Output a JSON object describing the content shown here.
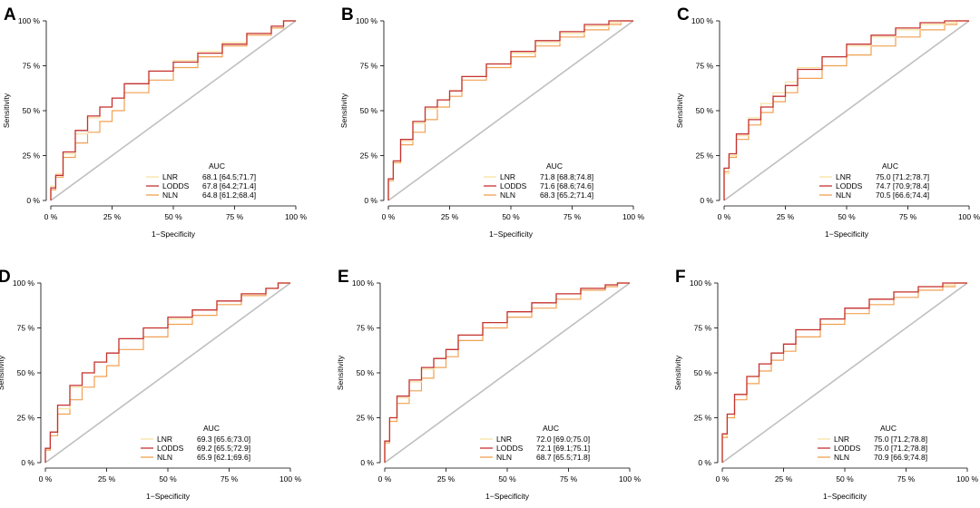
{
  "shared": {
    "xlabel": "1−Specificity",
    "ylabel": "Sensitivity",
    "xticks": [
      "0 %",
      "25 %",
      "50 %",
      "75 %",
      "100 %"
    ],
    "yticks": [
      "0 %",
      "25 %",
      "50 %",
      "75 %",
      "100 %"
    ],
    "legend_title": "AUC",
    "series_names": [
      "LNR",
      "LODDS",
      "NLN"
    ],
    "colors": {
      "LNR": "#f7e3a0",
      "LODDS": "#c53232",
      "NLN": "#f0a052",
      "diagonal": "#bfbfbf",
      "axis": "#000000"
    }
  },
  "chart_data": [
    {
      "type": "line",
      "panel_label": "A",
      "title": "",
      "xlabel": "1−Specificity",
      "ylabel": "Sensitivity",
      "xlim": [
        0,
        1
      ],
      "ylim": [
        0,
        1
      ],
      "legend_title": "AUC",
      "series": [
        {
          "name": "LNR",
          "auc_text": "68.1 [64.5;71.7]",
          "x": [
            0,
            0.02,
            0.05,
            0.1,
            0.15,
            0.2,
            0.25,
            0.3,
            0.4,
            0.5,
            0.6,
            0.7,
            0.8,
            0.9,
            0.95,
            1.0
          ],
          "y": [
            0,
            0.08,
            0.15,
            0.26,
            0.37,
            0.46,
            0.52,
            0.57,
            0.65,
            0.72,
            0.78,
            0.83,
            0.88,
            0.93,
            0.97,
            1.0
          ]
        },
        {
          "name": "LODDS",
          "auc_text": "67.8 [64.2;71.4]",
          "x": [
            0,
            0.02,
            0.05,
            0.1,
            0.15,
            0.2,
            0.25,
            0.3,
            0.4,
            0.5,
            0.6,
            0.7,
            0.8,
            0.9,
            0.95,
            1.0
          ],
          "y": [
            0,
            0.07,
            0.14,
            0.27,
            0.39,
            0.47,
            0.52,
            0.57,
            0.65,
            0.72,
            0.77,
            0.82,
            0.87,
            0.93,
            0.97,
            1.0
          ]
        },
        {
          "name": "NLN",
          "auc_text": "64.8 [61.2;68.4]",
          "x": [
            0,
            0.02,
            0.05,
            0.1,
            0.15,
            0.2,
            0.25,
            0.3,
            0.4,
            0.5,
            0.6,
            0.7,
            0.8,
            0.9,
            0.95,
            1.0
          ],
          "y": [
            0,
            0.06,
            0.13,
            0.24,
            0.32,
            0.38,
            0.44,
            0.5,
            0.6,
            0.67,
            0.74,
            0.8,
            0.86,
            0.92,
            0.96,
            1.0
          ]
        }
      ]
    },
    {
      "type": "line",
      "panel_label": "B",
      "title": "",
      "xlabel": "1−Specificity",
      "ylabel": "Sensitivity",
      "xlim": [
        0,
        1
      ],
      "ylim": [
        0,
        1
      ],
      "legend_title": "AUC",
      "series": [
        {
          "name": "LNR",
          "auc_text": "71.8 [68.8;74.8]",
          "x": [
            0,
            0.02,
            0.05,
            0.1,
            0.15,
            0.2,
            0.25,
            0.3,
            0.4,
            0.5,
            0.6,
            0.7,
            0.8,
            0.9,
            0.95,
            1.0
          ],
          "y": [
            0,
            0.12,
            0.22,
            0.33,
            0.43,
            0.51,
            0.56,
            0.61,
            0.69,
            0.76,
            0.82,
            0.88,
            0.93,
            0.97,
            0.99,
            1.0
          ]
        },
        {
          "name": "LODDS",
          "auc_text": "71.6 [68.6;74.6]",
          "x": [
            0,
            0.02,
            0.05,
            0.1,
            0.15,
            0.2,
            0.25,
            0.3,
            0.4,
            0.5,
            0.6,
            0.7,
            0.8,
            0.9,
            0.95,
            1.0
          ],
          "y": [
            0,
            0.12,
            0.22,
            0.34,
            0.44,
            0.52,
            0.56,
            0.61,
            0.69,
            0.76,
            0.83,
            0.89,
            0.94,
            0.98,
            1.0,
            1.0
          ]
        },
        {
          "name": "NLN",
          "auc_text": "68.3 [65.2;71.4]",
          "x": [
            0,
            0.02,
            0.05,
            0.1,
            0.15,
            0.2,
            0.25,
            0.3,
            0.4,
            0.5,
            0.6,
            0.7,
            0.8,
            0.9,
            0.95,
            1.0
          ],
          "y": [
            0,
            0.11,
            0.21,
            0.31,
            0.38,
            0.45,
            0.52,
            0.58,
            0.67,
            0.74,
            0.8,
            0.86,
            0.91,
            0.95,
            0.98,
            1.0
          ]
        }
      ]
    },
    {
      "type": "line",
      "panel_label": "C",
      "title": "",
      "xlabel": "1−Specificity",
      "ylabel": "Sensitivity",
      "xlim": [
        0,
        1
      ],
      "ylim": [
        0,
        1
      ],
      "legend_title": "AUC",
      "series": [
        {
          "name": "LNR",
          "auc_text": "75.0 [71.2;78.7]",
          "x": [
            0,
            0.02,
            0.05,
            0.1,
            0.15,
            0.2,
            0.25,
            0.3,
            0.4,
            0.5,
            0.6,
            0.7,
            0.8,
            0.9,
            0.95,
            1.0
          ],
          "y": [
            0,
            0.15,
            0.25,
            0.36,
            0.46,
            0.54,
            0.6,
            0.66,
            0.74,
            0.8,
            0.86,
            0.91,
            0.95,
            0.98,
            0.99,
            1.0
          ]
        },
        {
          "name": "LODDS",
          "auc_text": "74.7 [70.9;78.4]",
          "x": [
            0,
            0.02,
            0.05,
            0.1,
            0.15,
            0.2,
            0.25,
            0.3,
            0.4,
            0.5,
            0.6,
            0.7,
            0.8,
            0.9,
            0.95,
            1.0
          ],
          "y": [
            0,
            0.18,
            0.26,
            0.37,
            0.45,
            0.52,
            0.58,
            0.64,
            0.73,
            0.8,
            0.87,
            0.92,
            0.96,
            0.99,
            1.0,
            1.0
          ]
        },
        {
          "name": "NLN",
          "auc_text": "70.5 [66.6;74.4]",
          "x": [
            0,
            0.02,
            0.05,
            0.1,
            0.15,
            0.2,
            0.25,
            0.3,
            0.4,
            0.5,
            0.6,
            0.7,
            0.8,
            0.9,
            0.95,
            1.0
          ],
          "y": [
            0,
            0.16,
            0.24,
            0.34,
            0.42,
            0.49,
            0.55,
            0.6,
            0.68,
            0.75,
            0.81,
            0.86,
            0.91,
            0.95,
            0.98,
            1.0
          ]
        }
      ]
    },
    {
      "type": "line",
      "panel_label": "D",
      "title": "",
      "xlabel": "1−Specificity",
      "ylabel": "Sensitivity",
      "xlim": [
        0,
        1
      ],
      "ylim": [
        0,
        1
      ],
      "legend_title": "AUC",
      "series": [
        {
          "name": "LNR",
          "auc_text": "69.3 [65.6;73.0]",
          "x": [
            0,
            0.02,
            0.05,
            0.1,
            0.15,
            0.2,
            0.25,
            0.3,
            0.4,
            0.5,
            0.6,
            0.7,
            0.8,
            0.9,
            0.95,
            1.0
          ],
          "y": [
            0,
            0.08,
            0.17,
            0.3,
            0.42,
            0.5,
            0.56,
            0.61,
            0.69,
            0.75,
            0.8,
            0.85,
            0.9,
            0.94,
            0.97,
            1.0
          ]
        },
        {
          "name": "LODDS",
          "auc_text": "69.2 [65.5;72.9]",
          "x": [
            0,
            0.02,
            0.05,
            0.1,
            0.15,
            0.2,
            0.25,
            0.3,
            0.4,
            0.5,
            0.6,
            0.7,
            0.8,
            0.9,
            0.95,
            1.0
          ],
          "y": [
            0,
            0.08,
            0.17,
            0.32,
            0.43,
            0.5,
            0.56,
            0.61,
            0.69,
            0.75,
            0.81,
            0.85,
            0.9,
            0.94,
            0.97,
            1.0
          ]
        },
        {
          "name": "NLN",
          "auc_text": "65.9 [62.1;69.6]",
          "x": [
            0,
            0.02,
            0.05,
            0.1,
            0.15,
            0.2,
            0.25,
            0.3,
            0.4,
            0.5,
            0.6,
            0.7,
            0.8,
            0.9,
            0.95,
            1.0
          ],
          "y": [
            0,
            0.07,
            0.15,
            0.27,
            0.35,
            0.42,
            0.48,
            0.54,
            0.63,
            0.7,
            0.77,
            0.82,
            0.88,
            0.93,
            0.97,
            1.0
          ]
        }
      ]
    },
    {
      "type": "line",
      "panel_label": "E",
      "title": "",
      "xlabel": "1−Specificity",
      "ylabel": "Sensitivity",
      "xlim": [
        0,
        1
      ],
      "ylim": [
        0,
        1
      ],
      "legend_title": "AUC",
      "series": [
        {
          "name": "LNR",
          "auc_text": "72.0 [69.0;75.0]",
          "x": [
            0,
            0.02,
            0.05,
            0.1,
            0.15,
            0.2,
            0.25,
            0.3,
            0.4,
            0.5,
            0.6,
            0.7,
            0.8,
            0.9,
            0.95,
            1.0
          ],
          "y": [
            0,
            0.12,
            0.25,
            0.36,
            0.45,
            0.52,
            0.58,
            0.63,
            0.71,
            0.78,
            0.84,
            0.89,
            0.94,
            0.97,
            0.99,
            1.0
          ]
        },
        {
          "name": "LODDS",
          "auc_text": "72.1 [69.1;75.1]",
          "x": [
            0,
            0.02,
            0.05,
            0.1,
            0.15,
            0.2,
            0.25,
            0.3,
            0.4,
            0.5,
            0.6,
            0.7,
            0.8,
            0.9,
            0.95,
            1.0
          ],
          "y": [
            0,
            0.12,
            0.25,
            0.37,
            0.46,
            0.53,
            0.58,
            0.63,
            0.71,
            0.78,
            0.84,
            0.89,
            0.94,
            0.97,
            0.99,
            1.0
          ]
        },
        {
          "name": "NLN",
          "auc_text": "68.7 [65.5;71.8]",
          "x": [
            0,
            0.02,
            0.05,
            0.1,
            0.15,
            0.2,
            0.25,
            0.3,
            0.4,
            0.5,
            0.6,
            0.7,
            0.8,
            0.9,
            0.95,
            1.0
          ],
          "y": [
            0,
            0.11,
            0.23,
            0.33,
            0.4,
            0.47,
            0.53,
            0.59,
            0.68,
            0.75,
            0.81,
            0.86,
            0.91,
            0.96,
            0.98,
            1.0
          ]
        }
      ]
    },
    {
      "type": "line",
      "panel_label": "F",
      "title": "",
      "xlabel": "1−Specificity",
      "ylabel": "Sensitivity",
      "xlim": [
        0,
        1
      ],
      "ylim": [
        0,
        1
      ],
      "legend_title": "AUC",
      "series": [
        {
          "name": "LNR",
          "auc_text": "75.0 [71.2;78.8]",
          "x": [
            0,
            0.02,
            0.05,
            0.1,
            0.15,
            0.2,
            0.25,
            0.3,
            0.4,
            0.5,
            0.6,
            0.7,
            0.8,
            0.9,
            0.95,
            1.0
          ],
          "y": [
            0,
            0.15,
            0.27,
            0.38,
            0.48,
            0.55,
            0.61,
            0.66,
            0.74,
            0.8,
            0.86,
            0.91,
            0.95,
            0.98,
            0.99,
            1.0
          ]
        },
        {
          "name": "LODDS",
          "auc_text": "75.0 [71.2;78.8]",
          "x": [
            0,
            0.02,
            0.05,
            0.1,
            0.15,
            0.2,
            0.25,
            0.3,
            0.4,
            0.5,
            0.6,
            0.7,
            0.8,
            0.9,
            0.95,
            1.0
          ],
          "y": [
            0,
            0.16,
            0.27,
            0.38,
            0.48,
            0.55,
            0.61,
            0.66,
            0.74,
            0.8,
            0.86,
            0.91,
            0.95,
            0.98,
            1.0,
            1.0
          ]
        },
        {
          "name": "NLN",
          "auc_text": "70.9 [66.9;74.8]",
          "x": [
            0,
            0.02,
            0.05,
            0.1,
            0.15,
            0.2,
            0.25,
            0.3,
            0.4,
            0.5,
            0.6,
            0.7,
            0.8,
            0.9,
            0.95,
            1.0
          ],
          "y": [
            0,
            0.14,
            0.25,
            0.35,
            0.44,
            0.51,
            0.57,
            0.62,
            0.7,
            0.77,
            0.83,
            0.88,
            0.92,
            0.96,
            0.98,
            1.0
          ]
        }
      ]
    }
  ]
}
